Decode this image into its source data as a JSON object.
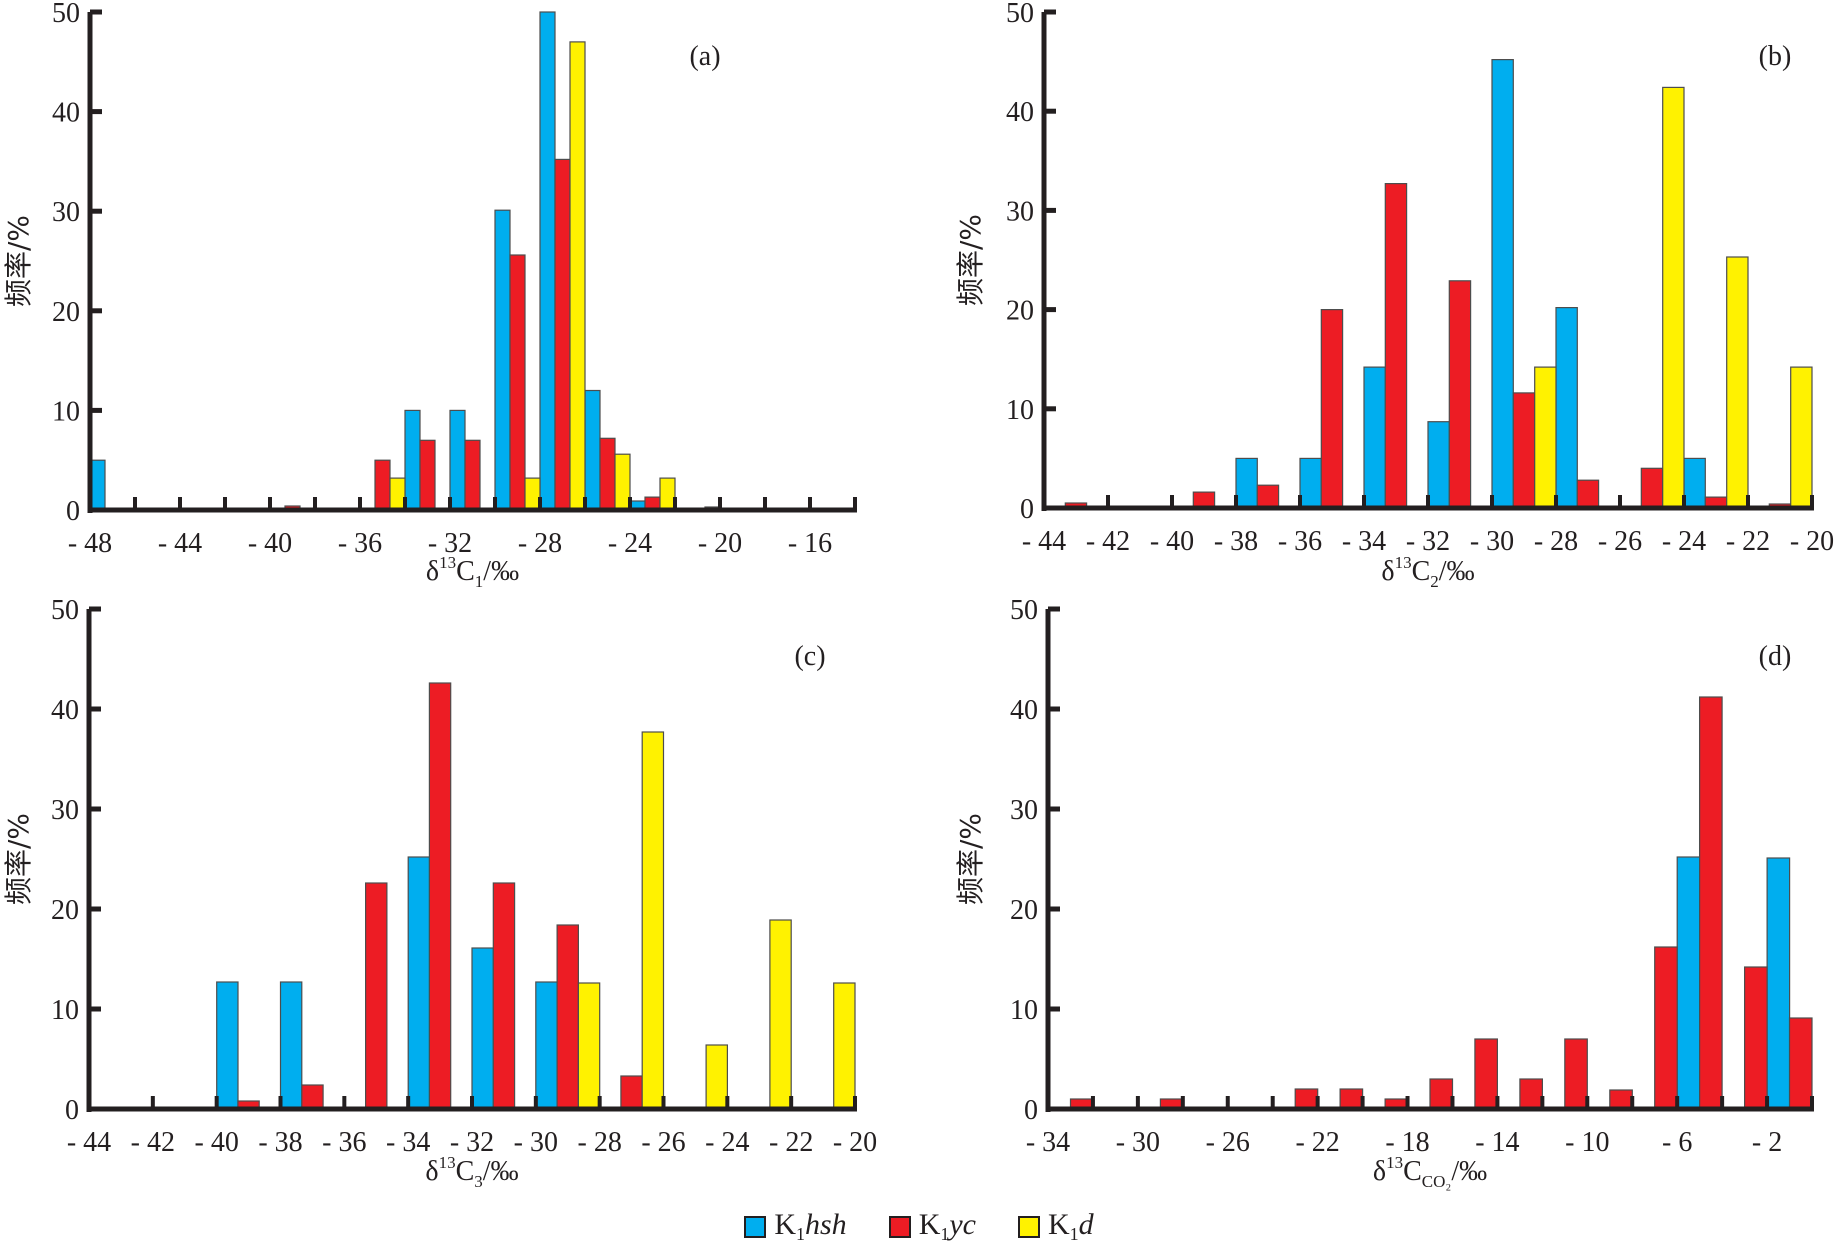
{
  "legend": [
    {
      "key": "hsh",
      "prefix": "K",
      "sub": "1",
      "suffix": "hsh",
      "color": "#00aeef"
    },
    {
      "key": "yc",
      "prefix": "K",
      "sub": "1",
      "suffix": "yc",
      "color": "#ed1c24"
    },
    {
      "key": "d",
      "prefix": "K",
      "sub": "1",
      "suffix": "d",
      "color": "#fff200"
    }
  ],
  "chart_data": [
    {
      "id": "a",
      "type": "bar",
      "tag": "(a)",
      "ylabel": "频率/%",
      "xlabel": {
        "main": "δ",
        "sup": "13",
        "base": "C",
        "sub": "1",
        "unit": "/‰"
      },
      "xlim": [
        -48,
        -14
      ],
      "ylim": [
        0,
        50
      ],
      "bin_width": 2,
      "x_tick_step": 2,
      "x_tick_labels": [
        "- 48",
        "- 44",
        "- 40",
        "- 36",
        "- 32",
        "- 28",
        "- 24",
        "- 20",
        "- 16"
      ],
      "x_tick_label_values": [
        -48,
        -44,
        -40,
        -36,
        -32,
        -28,
        -24,
        -20,
        -16
      ],
      "y_ticks": [
        0,
        10,
        20,
        30,
        40,
        50
      ],
      "slots": [
        "hsh",
        "yc",
        "d"
      ],
      "bins": [
        -48,
        -46,
        -44,
        -42,
        -40,
        -38,
        -36,
        -34,
        -32,
        -30,
        -28,
        -26,
        -24,
        -22,
        -20,
        -18,
        -16
      ],
      "series": [
        {
          "name": "K1hsh",
          "key": "hsh",
          "values": [
            5,
            0,
            0,
            0,
            0,
            0,
            0,
            10,
            10,
            30.1,
            50,
            12,
            0.9,
            0,
            0,
            0,
            0
          ]
        },
        {
          "name": "K1yc",
          "key": "yc",
          "values": [
            0,
            0,
            0,
            0,
            0.4,
            0,
            5,
            7,
            7,
            25.6,
            35.2,
            7.2,
            1.3,
            0,
            0,
            0,
            0
          ]
        },
        {
          "name": "K1d",
          "key": "d",
          "values": [
            0,
            0,
            0,
            0,
            0,
            0,
            3.2,
            0,
            0,
            3.2,
            47,
            5.6,
            3.2,
            0.3,
            0,
            0,
            0
          ]
        }
      ]
    },
    {
      "id": "b",
      "type": "bar",
      "tag": "(b)",
      "ylabel": "频率/%",
      "xlabel": {
        "main": "δ",
        "sup": "13",
        "base": "C",
        "sub": "2",
        "unit": "/‰"
      },
      "xlim": [
        -44,
        -20
      ],
      "ylim": [
        0,
        50
      ],
      "bin_width": 2,
      "x_tick_step": 2,
      "x_tick_labels": [
        "- 44",
        "- 42",
        "- 40",
        "- 38",
        "- 36",
        "- 34",
        "- 32",
        "- 30",
        "- 28",
        "- 26",
        "- 24",
        "- 22",
        "- 20"
      ],
      "x_tick_label_values": [
        -44,
        -42,
        -40,
        -38,
        -36,
        -34,
        -32,
        -30,
        -28,
        -26,
        -24,
        -22,
        -20
      ],
      "y_ticks": [
        0,
        10,
        20,
        30,
        40,
        50
      ],
      "slots": [
        "hsh",
        "yc",
        "d"
      ],
      "bins": [
        -44,
        -42,
        -40,
        -38,
        -36,
        -34,
        -32,
        -30,
        -28,
        -26,
        -24,
        -22
      ],
      "series": [
        {
          "name": "K1hsh",
          "key": "hsh",
          "values": [
            0,
            0,
            0,
            5,
            5,
            14.2,
            8.7,
            45.2,
            20.2,
            0,
            5,
            0
          ]
        },
        {
          "name": "K1yc",
          "key": "yc",
          "values": [
            0.5,
            0,
            1.6,
            2.3,
            20,
            32.7,
            22.9,
            11.6,
            2.8,
            4,
            1.1,
            0.4
          ]
        },
        {
          "name": "K1d",
          "key": "d",
          "values": [
            0,
            0,
            0,
            0,
            0,
            0,
            0,
            14.2,
            0,
            42.4,
            25.3,
            14.2
          ]
        }
      ]
    },
    {
      "id": "c",
      "type": "bar",
      "tag": "(c)",
      "ylabel": "频率/%",
      "xlabel": {
        "main": "δ",
        "sup": "13",
        "base": "C",
        "sub": "3",
        "unit": "/‰"
      },
      "xlim": [
        -44,
        -20
      ],
      "ylim": [
        0,
        50
      ],
      "bin_width": 2,
      "x_tick_step": 2,
      "x_tick_labels": [
        "- 44",
        "- 42",
        "- 40",
        "- 38",
        "- 36",
        "- 34",
        "- 32",
        "- 30",
        "- 28",
        "- 26",
        "- 24",
        "- 22",
        "- 20"
      ],
      "x_tick_label_values": [
        -44,
        -42,
        -40,
        -38,
        -36,
        -34,
        -32,
        -30,
        -28,
        -26,
        -24,
        -22,
        -20
      ],
      "y_ticks": [
        0,
        10,
        20,
        30,
        40,
        50
      ],
      "slots": [
        "hsh",
        "yc",
        "d"
      ],
      "bins": [
        -44,
        -42,
        -40,
        -38,
        -36,
        -34,
        -32,
        -30,
        -28,
        -26,
        -24,
        -22
      ],
      "series": [
        {
          "name": "K1hsh",
          "key": "hsh",
          "values": [
            0,
            0,
            12.7,
            12.7,
            0,
            25.2,
            16.1,
            12.7,
            0,
            0,
            0,
            0
          ]
        },
        {
          "name": "K1yc",
          "key": "yc",
          "values": [
            0,
            0,
            0.8,
            2.4,
            22.6,
            42.6,
            22.6,
            18.4,
            3.3,
            0,
            0,
            0
          ]
        },
        {
          "name": "K1d",
          "key": "d",
          "values": [
            0,
            0,
            0,
            0,
            0,
            0,
            0,
            12.6,
            37.7,
            6.4,
            18.9,
            12.6
          ]
        }
      ]
    },
    {
      "id": "d",
      "type": "bar",
      "tag": "(d)",
      "ylabel": "频率/%",
      "xlabel": {
        "main": "δ",
        "sup": "13",
        "base": "C",
        "sub": "CO₂",
        "unit": "/‰"
      },
      "xlim": [
        -34,
        0
      ],
      "ylim": [
        0,
        50
      ],
      "bin_width": 2,
      "x_tick_step": 2,
      "x_tick_labels": [
        "- 34",
        "- 30",
        "- 26",
        "- 22",
        "- 18",
        "- 14",
        "- 10",
        "- 6",
        "- 2"
      ],
      "x_tick_label_values": [
        -34,
        -30,
        -26,
        -22,
        -18,
        -14,
        -10,
        -6,
        -2
      ],
      "y_ticks": [
        0,
        10,
        20,
        30,
        40,
        50
      ],
      "slots": [
        "hsh",
        "yc"
      ],
      "bins": [
        -34,
        -32,
        -30,
        -28,
        -26,
        -24,
        -22,
        -20,
        -18,
        -16,
        -14,
        -12,
        -10,
        -8,
        -6,
        -4,
        -2
      ],
      "series": [
        {
          "name": "K1hsh",
          "key": "hsh",
          "values": [
            0,
            0,
            0,
            0,
            0,
            0,
            0,
            0,
            0,
            0,
            0,
            0,
            0,
            0,
            25.2,
            0,
            25.1
          ]
        },
        {
          "name": "K1yc",
          "key": "yc",
          "values": [
            1,
            0,
            1,
            0,
            0,
            2,
            2,
            1,
            3,
            7,
            3,
            7,
            1.9,
            16.2,
            41.2,
            14.2,
            9.1
          ]
        }
      ]
    }
  ]
}
